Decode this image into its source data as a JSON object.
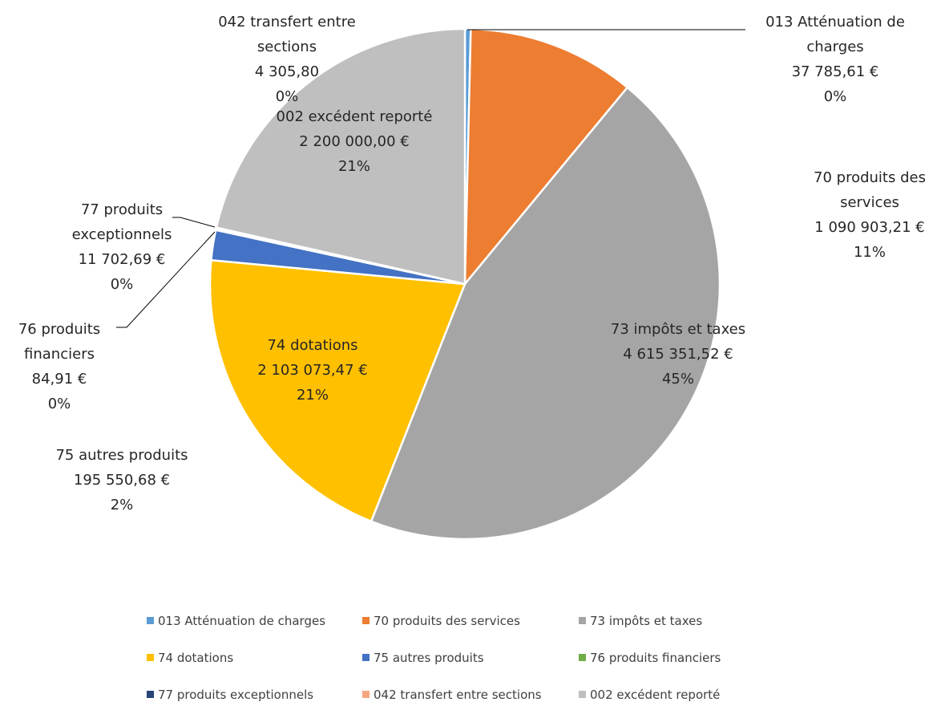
{
  "chart_data": {
    "type": "pie",
    "categories": [
      "013 Atténuation de charges",
      "70 produits des services",
      "73 impôts et taxes",
      "74 dotations",
      "75 autres produits",
      "76 produits financiers",
      "77 produits exceptionnels",
      "042 transfert entre sections",
      "002 excédent reporté"
    ],
    "values": [
      37785.61,
      1090903.21,
      4615351.52,
      2103073.47,
      195550.68,
      84.91,
      11702.69,
      4305.8,
      2200000.0
    ],
    "value_labels": [
      "37 785,61 €",
      "1 090 903,21 €",
      "4 615 351,52 €",
      "2 103 073,47 €",
      "195 550,68 €",
      "84,91 €",
      "11 702,69 €",
      "4 305,80",
      "2 200 000,00 €"
    ],
    "percent_labels": [
      "0%",
      "11%",
      "45%",
      "21%",
      "2%",
      "0%",
      "0%",
      "0%",
      "21%"
    ],
    "colors": [
      "#5b9bd5",
      "#ed7d31",
      "#a5a5a5",
      "#ffc000",
      "#4472c4",
      "#70ad47",
      "#264478",
      "#f4a582",
      "#bfbfbf"
    ],
    "legend": "bottom"
  }
}
